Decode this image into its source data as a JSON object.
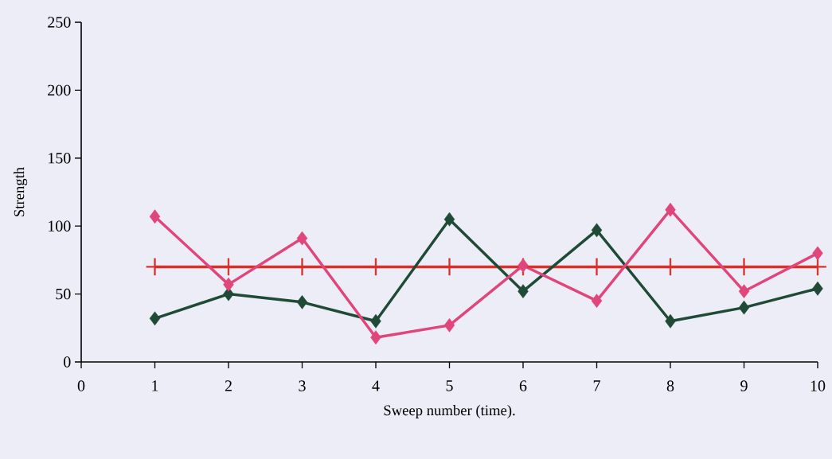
{
  "chart_data": {
    "type": "line",
    "xlabel": "Sweep number (time).",
    "ylabel": "Strength",
    "x": [
      1,
      2,
      3,
      4,
      5,
      6,
      7,
      8,
      9,
      10
    ],
    "series": [
      {
        "color": "#e0457b",
        "values": [
          107,
          57,
          91,
          18,
          27,
          71,
          45,
          112,
          52,
          80
        ],
        "marker": "diamond"
      },
      {
        "color": "#1f4a35",
        "values": [
          32,
          50,
          44,
          30,
          105,
          52,
          97,
          30,
          40,
          54
        ],
        "marker": "diamond"
      },
      {
        "color": "#d9302a",
        "values": [
          70,
          70,
          70,
          70,
          70,
          70,
          70,
          70,
          70,
          70
        ],
        "marker": "cross"
      }
    ],
    "xlim": [
      0,
      10
    ],
    "xticks": [
      0,
      1,
      2,
      3,
      4,
      5,
      6,
      7,
      8,
      9,
      10
    ],
    "ylim": [
      0,
      250
    ],
    "yticks": [
      0,
      50,
      100,
      150,
      200,
      250
    ],
    "grid": false,
    "line_style": "solid"
  }
}
